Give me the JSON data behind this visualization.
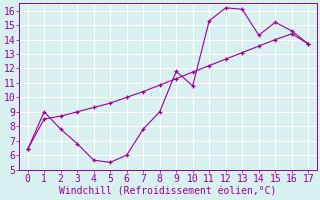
{
  "xlabel": "Windchill (Refroidissement éolien,°C)",
  "x_curve1": [
    0,
    1,
    2,
    3,
    4,
    5,
    6,
    7,
    8,
    9,
    10,
    11,
    12,
    13,
    14,
    15,
    16,
    17
  ],
  "y_curve1": [
    6.4,
    9.0,
    7.8,
    6.8,
    5.65,
    5.5,
    6.0,
    7.8,
    9.0,
    11.8,
    10.8,
    15.3,
    16.2,
    16.1,
    14.3,
    15.2,
    14.6,
    13.7
  ],
  "x_curve2": [
    0,
    1,
    2,
    3,
    4,
    5,
    6,
    7,
    8,
    9,
    10,
    11,
    12,
    13,
    14,
    15,
    16,
    17
  ],
  "y_curve2": [
    6.4,
    8.5,
    8.7,
    9.0,
    9.3,
    9.6,
    10.0,
    10.4,
    10.85,
    11.3,
    11.75,
    12.2,
    12.65,
    13.1,
    13.55,
    14.0,
    14.4,
    13.7
  ],
  "line_color": "#990099",
  "bg_color": "#d8f0f0",
  "grid_color": "#b0d8d8",
  "xlim": [
    -0.5,
    17.5
  ],
  "ylim": [
    5,
    16.5
  ],
  "xticks": [
    0,
    1,
    2,
    3,
    4,
    5,
    6,
    7,
    8,
    9,
    10,
    11,
    12,
    13,
    14,
    15,
    16,
    17
  ],
  "yticks": [
    5,
    6,
    7,
    8,
    9,
    10,
    11,
    12,
    13,
    14,
    15,
    16
  ],
  "xlabel_fontsize": 7,
  "tick_fontsize": 7
}
